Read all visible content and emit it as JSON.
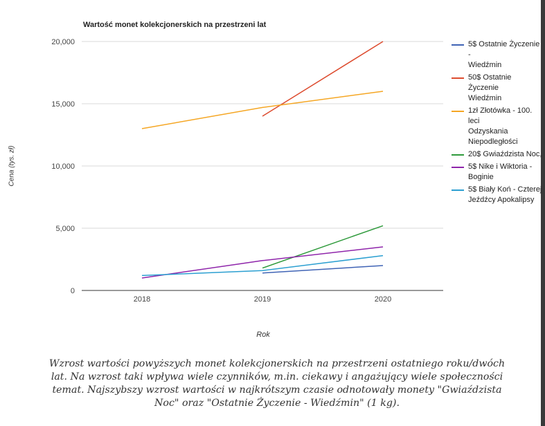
{
  "chart_data": {
    "type": "line",
    "title": "Wartość monet kolekcjonerskich na przestrzeni lat",
    "xlabel": "Rok",
    "ylabel": "Cena (tys. zł)",
    "x": [
      "2018",
      "2019",
      "2020"
    ],
    "ylim": [
      0,
      20000
    ],
    "yticks": [
      "0",
      "5,000",
      "10,000",
      "15,000",
      "20,000"
    ],
    "grid": true,
    "legend_position": "right",
    "series": [
      {
        "name": "5$ Ostatnie Życzenie -\nWiedźmin",
        "color": "#3f63b5",
        "values": [
          null,
          1400,
          2000
        ]
      },
      {
        "name": "50$ Ostatnie Życzenie\nWiedźmin",
        "color": "#dd4b2e",
        "values": [
          null,
          14000,
          20000
        ]
      },
      {
        "name": "1zł Złotówka - 100. leci\nOdzyskania\nNiepodległości",
        "color": "#f5a623",
        "values": [
          13000,
          14700,
          16000
        ]
      },
      {
        "name": "20$ Gwiaździsta Noc,",
        "color": "#2e9a3b",
        "values": [
          null,
          1800,
          5200
        ]
      },
      {
        "name": "5$ Nike i Wiktoria -\nBoginie",
        "color": "#8e24aa",
        "values": [
          1000,
          2400,
          3500
        ]
      },
      {
        "name": "5$ Biały Koń - Czterej\nJeźdźcy Apokalipsy",
        "color": "#2b9fd1",
        "values": [
          1200,
          1600,
          2800
        ]
      }
    ]
  },
  "caption": "Wzrost wartości powyższych monet kolekcjonerskich na przestrzeni ostatniego roku/dwóch lat. Na wzrost taki wpływa wiele czynników, m.in. ciekawy i angażujący wiele społeczności temat. Najszybszy wzrost wartości w najkrótszym czasie odnotowały monety \"Gwiaździsta Noc\" oraz \"Ostatnie Życzenie - Wiedźmin\" (1 kg)."
}
